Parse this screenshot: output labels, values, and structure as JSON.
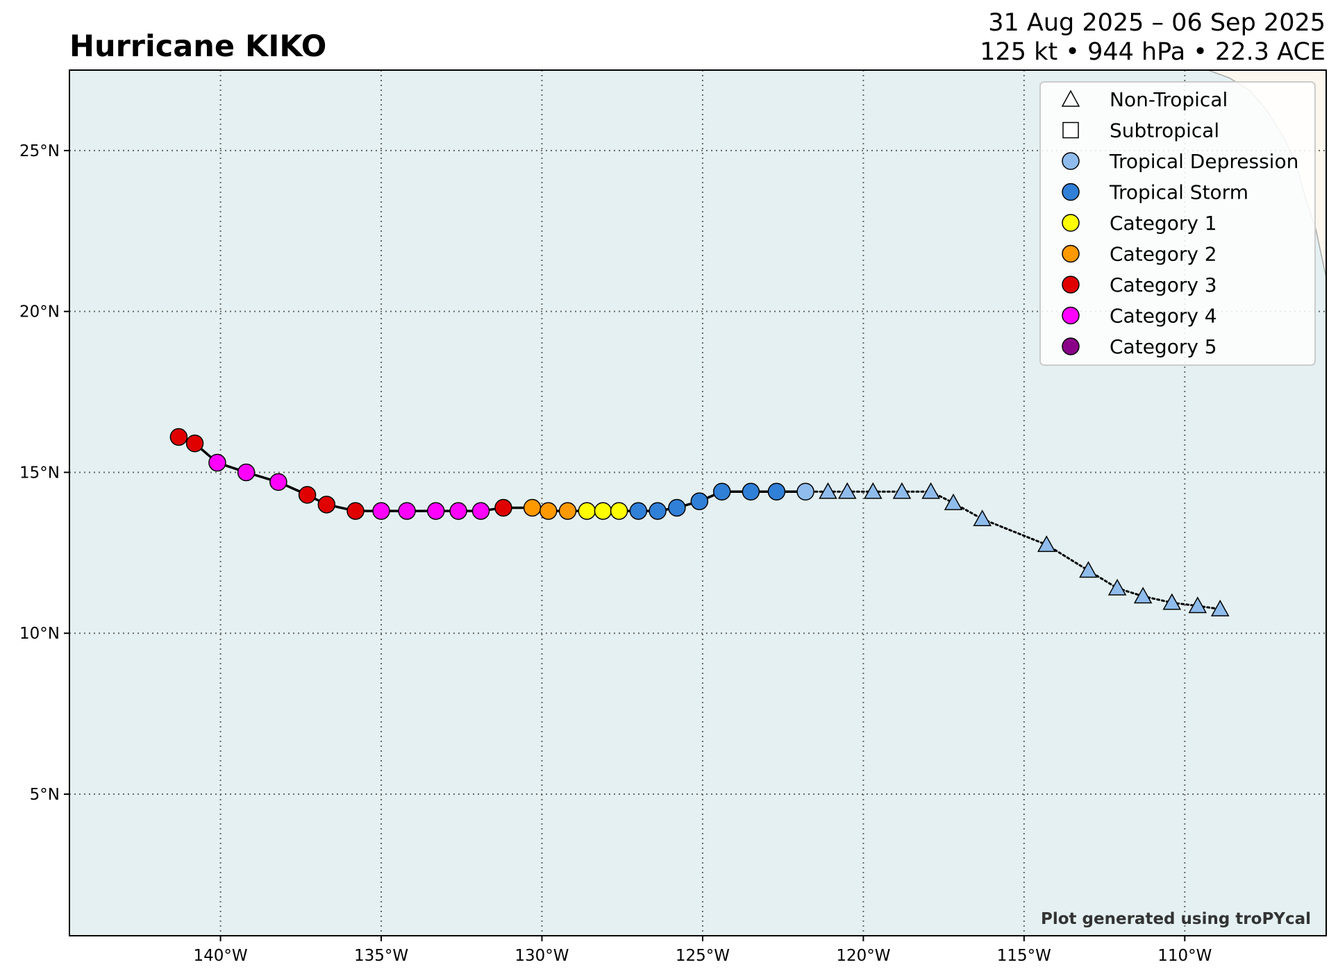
{
  "header": {
    "title": "Hurricane KIKO",
    "date_range": "31 Aug 2025 – 06 Sep 2025",
    "stats": "125 kt • 944 hPa • 22.3 ACE"
  },
  "map": {
    "lon_range": [
      -144.7,
      -105.6
    ],
    "lat_range": [
      0.6,
      27.5
    ],
    "x_ticks": [
      {
        "value": -140,
        "label": "140°W"
      },
      {
        "value": -135,
        "label": "135°W"
      },
      {
        "value": -130,
        "label": "130°W"
      },
      {
        "value": -125,
        "label": "125°W"
      },
      {
        "value": -120,
        "label": "120°W"
      },
      {
        "value": -115,
        "label": "115°W"
      },
      {
        "value": -110,
        "label": "110°W"
      }
    ],
    "y_ticks": [
      {
        "value": 25,
        "label": "25°N"
      },
      {
        "value": 20,
        "label": "20°N"
      },
      {
        "value": 15,
        "label": "15°N"
      },
      {
        "value": 10,
        "label": "10°N"
      },
      {
        "value": 5,
        "label": "5°N"
      }
    ],
    "grid": true,
    "ocean_color": "#e4f0f1",
    "land_color": "#fbf7ee"
  },
  "legend": {
    "placement": "top-right",
    "items": [
      {
        "label": "Non-Tropical",
        "shape": "triangle",
        "color": "#ffffff"
      },
      {
        "label": "Subtropical",
        "shape": "square",
        "color": "#ffffff"
      },
      {
        "label": "Tropical Depression",
        "shape": "circle",
        "color": "#8fbcec"
      },
      {
        "label": "Tropical Storm",
        "shape": "circle",
        "color": "#3080d8"
      },
      {
        "label": "Category 1",
        "shape": "circle",
        "color": "#ffff00"
      },
      {
        "label": "Category 2",
        "shape": "circle",
        "color": "#ff9900"
      },
      {
        "label": "Category 3",
        "shape": "circle",
        "color": "#e00000"
      },
      {
        "label": "Category 4",
        "shape": "circle",
        "color": "#ff00ff"
      },
      {
        "label": "Category 5",
        "shape": "circle",
        "color": "#8b0088"
      }
    ]
  },
  "track": [
    {
      "lon": -141.3,
      "lat": 16.1,
      "cat": "Category 3"
    },
    {
      "lon": -140.8,
      "lat": 15.9,
      "cat": "Category 3"
    },
    {
      "lon": -140.1,
      "lat": 15.3,
      "cat": "Category 4"
    },
    {
      "lon": -139.2,
      "lat": 15.0,
      "cat": "Category 4"
    },
    {
      "lon": -138.2,
      "lat": 14.7,
      "cat": "Category 4"
    },
    {
      "lon": -137.3,
      "lat": 14.3,
      "cat": "Category 3"
    },
    {
      "lon": -136.7,
      "lat": 14.0,
      "cat": "Category 3"
    },
    {
      "lon": -135.8,
      "lat": 13.8,
      "cat": "Category 3"
    },
    {
      "lon": -135.0,
      "lat": 13.8,
      "cat": "Category 4"
    },
    {
      "lon": -134.2,
      "lat": 13.8,
      "cat": "Category 4"
    },
    {
      "lon": -133.3,
      "lat": 13.8,
      "cat": "Category 4"
    },
    {
      "lon": -132.6,
      "lat": 13.8,
      "cat": "Category 4"
    },
    {
      "lon": -131.9,
      "lat": 13.8,
      "cat": "Category 4"
    },
    {
      "lon": -131.2,
      "lat": 13.9,
      "cat": "Category 3"
    },
    {
      "lon": -130.3,
      "lat": 13.9,
      "cat": "Category 2"
    },
    {
      "lon": -129.8,
      "lat": 13.8,
      "cat": "Category 2"
    },
    {
      "lon": -129.2,
      "lat": 13.8,
      "cat": "Category 2"
    },
    {
      "lon": -128.6,
      "lat": 13.8,
      "cat": "Category 1"
    },
    {
      "lon": -128.1,
      "lat": 13.8,
      "cat": "Category 1"
    },
    {
      "lon": -127.6,
      "lat": 13.8,
      "cat": "Category 1"
    },
    {
      "lon": -127.0,
      "lat": 13.8,
      "cat": "Tropical Storm"
    },
    {
      "lon": -126.4,
      "lat": 13.8,
      "cat": "Tropical Storm"
    },
    {
      "lon": -125.8,
      "lat": 13.9,
      "cat": "Tropical Storm"
    },
    {
      "lon": -125.1,
      "lat": 14.1,
      "cat": "Tropical Storm"
    },
    {
      "lon": -124.4,
      "lat": 14.4,
      "cat": "Tropical Storm"
    },
    {
      "lon": -123.5,
      "lat": 14.4,
      "cat": "Tropical Storm"
    },
    {
      "lon": -122.7,
      "lat": 14.4,
      "cat": "Tropical Storm"
    },
    {
      "lon": -121.8,
      "lat": 14.4,
      "cat": "Tropical Depression"
    },
    {
      "lon": -121.1,
      "lat": 14.4,
      "cat": "Non-Tropical"
    },
    {
      "lon": -120.5,
      "lat": 14.4,
      "cat": "Non-Tropical"
    },
    {
      "lon": -119.7,
      "lat": 14.4,
      "cat": "Non-Tropical"
    },
    {
      "lon": -118.8,
      "lat": 14.4,
      "cat": "Non-Tropical"
    },
    {
      "lon": -117.9,
      "lat": 14.4,
      "cat": "Non-Tropical"
    },
    {
      "lon": -117.2,
      "lat": 14.05,
      "cat": "Non-Tropical"
    },
    {
      "lon": -116.3,
      "lat": 13.55,
      "cat": "Non-Tropical"
    },
    {
      "lon": -114.3,
      "lat": 12.75,
      "cat": "Non-Tropical"
    },
    {
      "lon": -113.0,
      "lat": 11.95,
      "cat": "Non-Tropical"
    },
    {
      "lon": -112.1,
      "lat": 11.4,
      "cat": "Non-Tropical"
    },
    {
      "lon": -111.3,
      "lat": 11.15,
      "cat": "Non-Tropical"
    },
    {
      "lon": -110.4,
      "lat": 10.95,
      "cat": "Non-Tropical"
    },
    {
      "lon": -109.6,
      "lat": 10.85,
      "cat": "Non-Tropical"
    },
    {
      "lon": -108.9,
      "lat": 10.75,
      "cat": "Non-Tropical"
    }
  ],
  "credit": "Plot generated using troPYcal"
}
